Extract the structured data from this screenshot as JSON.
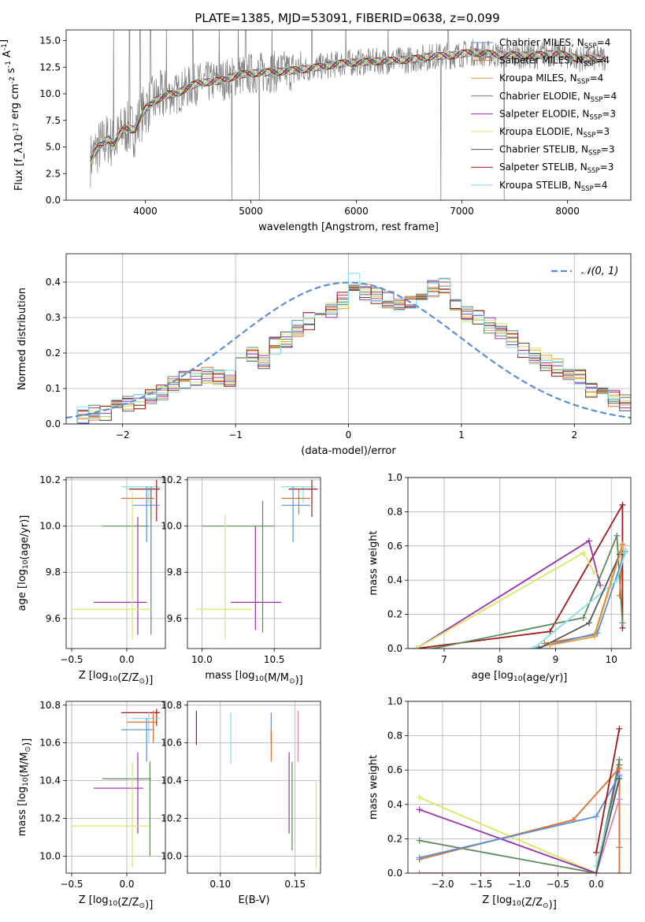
{
  "title": "PLATE=1385, MJD=53091, FIBERID=0638, z=0.099",
  "colors": {
    "Chabrier MILES": "#5b8ed6",
    "Salpeter MILES": "#e07030",
    "Kroupa MILES": "#e0a040",
    "Chabrier ELODIE": "#5a8a5a",
    "Salpeter ELODIE": "#9b30b0",
    "Kroupa ELODIE": "#d8e860",
    "Chabrier STELIB": "#555555",
    "Salpeter STELIB": "#a01818",
    "Kroupa STELIB": "#80e0e8",
    "spectrum": "#808080",
    "gaussian": "#5b8ed6",
    "extra": "#e080b0"
  },
  "chart_data": [
    {
      "id": "spectrum",
      "type": "line",
      "title": "PLATE=1385, MJD=53091, FIBERID=0638, z=0.099",
      "xlabel": "wavelength [Angstrom, rest frame]",
      "ylabel": "Flux [f_λ10^-17 erg cm^-2 s^-1 A^-1]",
      "xlim": [
        3250,
        8600
      ],
      "ylim": [
        0,
        16
      ],
      "xticks": [
        "4000",
        "5000",
        "6000",
        "7000",
        "8000"
      ],
      "yticks": [
        "0.0",
        "2.5",
        "5.0",
        "7.5",
        "10.0",
        "12.5",
        "15.0"
      ],
      "grid": false,
      "legend_position": "upper-right",
      "legend": [
        {
          "label": "Chabrier MILES, N",
          "sub": "SSP",
          "suffix": "=4"
        },
        {
          "label": "Salpeter MILES, N",
          "sub": "SSP",
          "suffix": "=4"
        },
        {
          "label": "Kroupa MILES, N",
          "sub": "SSP",
          "suffix": "=4"
        },
        {
          "label": "Chabrier ELODIE, N",
          "sub": "SSP",
          "suffix": "=4"
        },
        {
          "label": "Salpeter ELODIE, N",
          "sub": "SSP",
          "suffix": "=3"
        },
        {
          "label": "Kroupa ELODIE, N",
          "sub": "SSP",
          "suffix": "=3"
        },
        {
          "label": "Chabrier STELIB, N",
          "sub": "SSP",
          "suffix": "=3"
        },
        {
          "label": "Salpeter STELIB, N",
          "sub": "SSP",
          "suffix": "=3"
        },
        {
          "label": "Kroupa STELIB, N",
          "sub": "SSP",
          "suffix": "=4"
        }
      ],
      "continuum": [
        [
          3480,
          3.8
        ],
        [
          3550,
          4.9
        ],
        [
          3650,
          5.8
        ],
        [
          3700,
          5.2
        ],
        [
          3800,
          6.8
        ],
        [
          3900,
          6.6
        ],
        [
          4000,
          8.6
        ],
        [
          4100,
          9.4
        ],
        [
          4200,
          9.9
        ],
        [
          4300,
          10.0
        ],
        [
          4400,
          10.6
        ],
        [
          4500,
          11.0
        ],
        [
          4700,
          11.2
        ],
        [
          4900,
          11.8
        ],
        [
          5100,
          12.0
        ],
        [
          5300,
          12.1
        ],
        [
          5500,
          12.3
        ],
        [
          5700,
          12.6
        ],
        [
          5900,
          12.9
        ],
        [
          6100,
          13.0
        ],
        [
          6300,
          13.1
        ],
        [
          6500,
          13.2
        ],
        [
          6700,
          13.5
        ],
        [
          6900,
          13.6
        ],
        [
          7100,
          13.9
        ],
        [
          7300,
          13.7
        ],
        [
          7500,
          13.6
        ],
        [
          7700,
          13.6
        ],
        [
          7900,
          13.8
        ],
        [
          8100,
          13.3
        ],
        [
          8300,
          13.3
        ],
        [
          8360,
          13.4
        ]
      ],
      "spikes_up": [
        3700,
        3850,
        3950,
        4050,
        4200,
        4450,
        4700,
        4880,
        4950,
        5200,
        5577,
        5900,
        6300,
        6870
      ],
      "spikes_down": [
        4820,
        5080,
        6800,
        7400
      ]
    },
    {
      "id": "residuals",
      "type": "bar",
      "xlabel": "(data-model)/error",
      "ylabel": "Normed distribution",
      "xlim": [
        -2.5,
        2.5
      ],
      "ylim": [
        0,
        0.48
      ],
      "xticks": [
        "−2",
        "−1",
        "0",
        "1",
        "2"
      ],
      "yticks": [
        "0.0",
        "0.1",
        "0.2",
        "0.3",
        "0.4"
      ],
      "grid": true,
      "legend_position": "upper-right",
      "legend": [
        {
          "label": "𝒩(0, 1)"
        }
      ],
      "bin_width": 0.1,
      "bin_start": -2.5,
      "histogram_envelope": [
        0.02,
        0.025,
        0.03,
        0.035,
        0.045,
        0.055,
        0.065,
        0.08,
        0.09,
        0.11,
        0.125,
        0.13,
        0.14,
        0.135,
        0.13,
        0.19,
        0.2,
        0.18,
        0.22,
        0.24,
        0.27,
        0.29,
        0.32,
        0.32,
        0.35,
        0.4,
        0.37,
        0.36,
        0.35,
        0.34,
        0.35,
        0.36,
        0.38,
        0.39,
        0.33,
        0.31,
        0.3,
        0.28,
        0.26,
        0.24,
        0.21,
        0.19,
        0.17,
        0.16,
        0.14,
        0.13,
        0.1,
        0.09,
        0.07,
        0.06
      ]
    },
    {
      "id": "age-vs-Z",
      "type": "scatter",
      "xlabel": "Z [log10(Z/Z⊙)]",
      "ylabel": "age  [log10(age/yr)]",
      "xlim": [
        -0.55,
        0.35
      ],
      "ylim": [
        9.47,
        10.21
      ],
      "xticks": [
        "−0.5",
        "0.0"
      ],
      "yticks": [
        "9.6",
        "9.8",
        "10.0",
        "10.2"
      ],
      "grid": true,
      "points": [
        {
          "series": "Kroupa STELIB",
          "x": [
            -0.05,
            0.3
          ],
          "y": 10.17,
          "yr": [
            10.1,
            10.17
          ],
          "xc": 0.2
        },
        {
          "series": "Salpeter STELIB",
          "x": [
            0.02,
            0.3
          ],
          "y": 10.16,
          "yr": [
            10.02,
            10.2
          ],
          "xc": 0.27
        },
        {
          "series": "Salpeter MILES",
          "x": [
            -0.05,
            0.25
          ],
          "y": 10.12,
          "yr": [
            10.03,
            10.16
          ],
          "xc": 0.22
        },
        {
          "series": "Chabrier MILES",
          "x": [
            0.05,
            0.3
          ],
          "y": 10.09,
          "yr": [
            9.93,
            10.17
          ],
          "xc": 0.18
        },
        {
          "series": "Chabrier ELODIE",
          "x": [
            -0.22,
            0.2
          ],
          "y": 10.0,
          "yr": [
            9.53,
            10.17
          ],
          "xc": 0.22
        },
        {
          "series": "Salpeter ELODIE",
          "x": [
            -0.3,
            0.18
          ],
          "y": 9.67,
          "yr": [
            9.53,
            10.04
          ],
          "xc": 0.1
        },
        {
          "series": "Kroupa ELODIE",
          "x": [
            -0.5,
            0.22
          ],
          "y": 9.64,
          "yr": [
            9.51,
            10.15
          ],
          "xc": 0.05
        }
      ]
    },
    {
      "id": "age-vs-mass",
      "type": "scatter",
      "xlabel": "mass [log10(M/M⊙)]",
      "ylabel": "",
      "xlim": [
        9.9,
        10.82
      ],
      "ylim": [
        9.47,
        10.21
      ],
      "xticks": [
        "10.0",
        "10.5"
      ],
      "yticks": [
        "9.6",
        "9.8",
        "10.0",
        "10.2"
      ],
      "grid": true,
      "points": [
        {
          "series": "Kroupa STELIB",
          "x": [
            10.55,
            10.78
          ],
          "y": 10.17,
          "yr": [
            10.1,
            10.17
          ],
          "xc": 10.7
        },
        {
          "series": "Salpeter STELIB",
          "x": [
            10.6,
            10.8
          ],
          "y": 10.16,
          "yr": [
            10.04,
            10.2
          ],
          "xc": 10.76
        },
        {
          "series": "Salpeter MILES",
          "x": [
            10.55,
            10.75
          ],
          "y": 10.12,
          "yr": [
            10.05,
            10.16
          ],
          "xc": 10.67
        },
        {
          "series": "Chabrier MILES",
          "x": [
            10.55,
            10.75
          ],
          "y": 10.09,
          "yr": [
            9.93,
            10.17
          ],
          "xc": 10.63
        },
        {
          "series": "Chabrier ELODIE",
          "x": [
            10.0,
            10.5
          ],
          "y": 10.0,
          "yr": [
            9.54,
            10.11
          ],
          "xc": 10.42
        },
        {
          "series": "Salpeter ELODIE",
          "x": [
            10.2,
            10.55
          ],
          "y": 9.67,
          "yr": [
            9.55,
            10.0
          ],
          "xc": 10.37
        },
        {
          "series": "Kroupa ELODIE",
          "x": [
            9.96,
            10.35
          ],
          "y": 9.64,
          "yr": [
            9.51,
            10.05
          ],
          "xc": 10.16
        }
      ]
    },
    {
      "id": "weight-vs-age",
      "type": "line",
      "xlabel": "age  [log10(age/yr)]",
      "ylabel": "mass weight",
      "xlim": [
        6.35,
        10.35
      ],
      "ylim": [
        0,
        1
      ],
      "xticks": [
        "7",
        "8",
        "9",
        "10"
      ],
      "yticks": [
        "0.0",
        "0.2",
        "0.4",
        "0.6",
        "0.8",
        "1.0"
      ],
      "grid": true,
      "series": [
        {
          "name": "Salpeter STELIB",
          "x": [
            6.5,
            8.9,
            10.2,
            10.2
          ],
          "y": [
            0.0,
            0.1,
            0.84,
            0.12
          ]
        },
        {
          "name": "Salpeter ELODIE",
          "x": [
            6.5,
            9.6,
            9.8
          ],
          "y": [
            0.0,
            0.63,
            0.37
          ]
        },
        {
          "name": "Kroupa ELODIE",
          "x": [
            6.5,
            9.5,
            9.7
          ],
          "y": [
            0.0,
            0.56,
            0.44
          ]
        },
        {
          "name": "Chabrier ELODIE",
          "x": [
            6.8,
            9.5,
            10.1,
            10.2
          ],
          "y": [
            0.0,
            0.18,
            0.66,
            0.15
          ]
        },
        {
          "name": "Salpeter MILES",
          "x": [
            8.8,
            9.7,
            10.2,
            10.15
          ],
          "y": [
            0.03,
            0.08,
            0.61,
            0.31
          ]
        },
        {
          "name": "Chabrier MILES",
          "x": [
            8.6,
            9.75,
            10.25
          ],
          "y": [
            0.0,
            0.09,
            0.57
          ]
        },
        {
          "name": "Kroupa STELIB",
          "x": [
            8.6,
            10.1,
            10.25
          ],
          "y": [
            0.0,
            0.4,
            0.56
          ]
        },
        {
          "name": "Chabrier STELIB",
          "x": [
            8.7,
            9.6,
            10.15
          ],
          "y": [
            0.0,
            0.15,
            0.55
          ]
        },
        {
          "name": "Kroupa MILES",
          "x": [
            8.9,
            9.7,
            10.2
          ],
          "y": [
            0.02,
            0.07,
            0.6
          ]
        }
      ]
    },
    {
      "id": "mass-vs-Z",
      "type": "scatter",
      "xlabel": "Z [log10(Z/Z⊙)]",
      "ylabel": "mass [log10(M/M⊙)]",
      "xlim": [
        -0.55,
        0.35
      ],
      "ylim": [
        9.91,
        10.82
      ],
      "xticks": [
        "−0.5",
        "0.0"
      ],
      "yticks": [
        "10.0",
        "10.2",
        "10.4",
        "10.6",
        "10.8"
      ],
      "grid": true,
      "points": [
        {
          "series": "Salpeter STELIB",
          "x": [
            -0.05,
            0.3
          ],
          "y": 10.76,
          "yr": [
            10.69,
            10.78
          ],
          "xc": 0.27
        },
        {
          "series": "Kroupa STELIB",
          "x": [
            0.05,
            0.3
          ],
          "y": 10.73,
          "yr": [
            10.6,
            10.76
          ],
          "xc": 0.2
        },
        {
          "series": "Salpeter MILES",
          "x": [
            0.0,
            0.28
          ],
          "y": 10.71,
          "yr": [
            10.6,
            10.77
          ],
          "xc": 0.24
        },
        {
          "series": "Chabrier MILES",
          "x": [
            -0.05,
            0.25
          ],
          "y": 10.67,
          "yr": [
            10.5,
            10.73
          ],
          "xc": 0.18
        },
        {
          "series": "Chabrier ELODIE",
          "x": [
            -0.22,
            0.22
          ],
          "y": 10.41,
          "yr": [
            10.0,
            10.5
          ],
          "xc": 0.21
        },
        {
          "series": "Salpeter ELODIE",
          "x": [
            -0.3,
            0.15
          ],
          "y": 10.36,
          "yr": [
            10.12,
            10.55
          ],
          "xc": 0.1
        },
        {
          "series": "Kroupa ELODIE",
          "x": [
            -0.5,
            0.2
          ],
          "y": 10.16,
          "yr": [
            9.94,
            10.5
          ],
          "xc": 0.05
        }
      ]
    },
    {
      "id": "mass-vs-EBV",
      "type": "scatter",
      "xlabel": "E(B-V)",
      "ylabel": "",
      "xlim": [
        0.078,
        0.167
      ],
      "ylim": [
        9.91,
        10.82
      ],
      "xticks": [
        "0.10",
        "0.15"
      ],
      "yticks": [
        "10.0",
        "10.2",
        "10.4",
        "10.6",
        "10.8"
      ],
      "grid": true,
      "points": [
        {
          "series": "Salpeter STELIB",
          "xc": 0.084,
          "yr": [
            10.59,
            10.77
          ]
        },
        {
          "series": "Kroupa STELIB",
          "xc": 0.107,
          "yr": [
            10.49,
            10.76
          ]
        },
        {
          "series": "Chabrier MILES",
          "xc": 0.134,
          "yr": [
            10.6,
            10.76
          ]
        },
        {
          "series": "Salpeter MILES",
          "xc": 0.134,
          "yr": [
            10.5,
            10.67
          ]
        },
        {
          "series": "Salpeter ELODIE",
          "xc": 0.146,
          "yr": [
            10.12,
            10.55
          ]
        },
        {
          "series": "Chabrier ELODIE",
          "xc": 0.148,
          "yr": [
            10.03,
            10.5
          ]
        },
        {
          "series": "extra",
          "xc": 0.152,
          "yr": [
            10.5,
            10.77
          ]
        },
        {
          "series": "Kroupa ELODIE",
          "xc": 0.164,
          "yr": [
            9.94,
            10.4
          ]
        }
      ]
    },
    {
      "id": "weight-vs-Z",
      "type": "line",
      "xlabel": "Z [log10(Z/Z⊙)]",
      "ylabel": "mass weight",
      "xlim": [
        -2.45,
        0.45
      ],
      "ylim": [
        0,
        1
      ],
      "xticks": [
        "−2.0",
        "−1.5",
        "−1.0",
        "−0.5",
        "0.0"
      ],
      "yticks": [
        "0.0",
        "0.2",
        "0.4",
        "0.6",
        "0.8",
        "1.0"
      ],
      "grid": true,
      "series": [
        {
          "name": "Kroupa ELODIE",
          "x": [
            -2.3,
            0.0,
            0.3
          ],
          "y": [
            0.44,
            0.0,
            0.56
          ]
        },
        {
          "name": "Salpeter ELODIE",
          "x": [
            -2.3,
            0.0,
            0.3
          ],
          "y": [
            0.37,
            0.0,
            0.63
          ]
        },
        {
          "name": "Chabrier ELODIE",
          "x": [
            -2.3,
            0.0,
            0.3,
            0.3
          ],
          "y": [
            0.19,
            0.0,
            0.66,
            0.15
          ]
        },
        {
          "name": "Salpeter MILES",
          "x": [
            -2.3,
            -0.3,
            0.3,
            0.3
          ],
          "y": [
            0.08,
            0.31,
            0.61,
            0.0
          ]
        },
        {
          "name": "Chabrier MILES",
          "x": [
            -2.3,
            0.0,
            0.3
          ],
          "y": [
            0.09,
            0.33,
            0.57
          ]
        },
        {
          "name": "extra",
          "x": [
            -2.3,
            0.0,
            0.3
          ],
          "y": [
            0.0,
            0.0,
            0.43
          ]
        },
        {
          "name": "Salpeter STELIB",
          "x": [
            0.0,
            0.3
          ],
          "y": [
            0.12,
            0.84
          ]
        },
        {
          "name": "Kroupa STELIB",
          "x": [
            0.0,
            0.3
          ],
          "y": [
            0.04,
            0.56
          ]
        },
        {
          "name": "Chabrier STELIB",
          "x": [
            0.0,
            0.3
          ],
          "y": [
            0.0,
            0.55
          ]
        }
      ]
    }
  ]
}
